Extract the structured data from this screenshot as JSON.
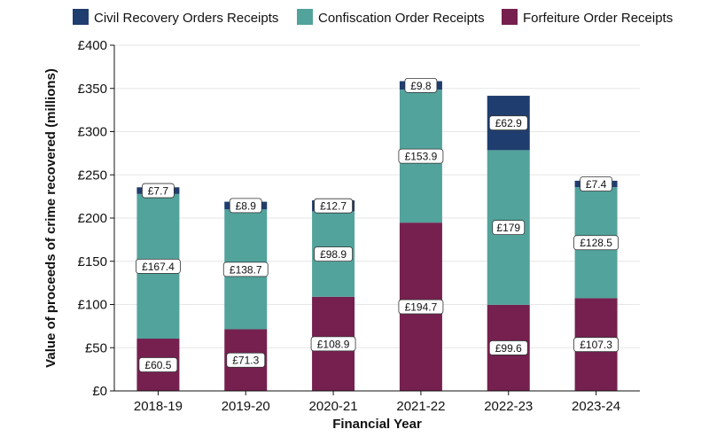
{
  "chart_data": {
    "type": "bar",
    "stacked": true,
    "categories": [
      "2018-19",
      "2019-20",
      "2020-21",
      "2021-22",
      "2022-23",
      "2023-24"
    ],
    "series": [
      {
        "name": "Forfeiture Order Receipts",
        "color": "#76204f",
        "values": [
          60.5,
          71.3,
          108.9,
          194.7,
          99.6,
          107.3
        ],
        "labels": [
          "£60.5",
          "£71.3",
          "£108.9",
          "£194.7",
          "£99.6",
          "£107.3"
        ]
      },
      {
        "name": "Confiscation Order Receipts",
        "color": "#52a39b",
        "values": [
          167.4,
          138.7,
          98.9,
          153.9,
          179,
          128.5
        ],
        "labels": [
          "£167.4",
          "£138.7",
          "£98.9",
          "£153.9",
          "£179",
          "£128.5"
        ]
      },
      {
        "name": "Civil Recovery Orders Receipts",
        "color": "#1f3d6e",
        "values": [
          7.7,
          8.9,
          12.7,
          9.8,
          62.9,
          7.4
        ],
        "labels": [
          "£7.7",
          "£8.9",
          "£12.7",
          "£9.8",
          "£62.9",
          "£7.4"
        ]
      }
    ],
    "legend_order": [
      "Civil Recovery Orders Receipts",
      "Confiscation Order Receipts",
      "Forfeiture Order Receipts"
    ],
    "legend_position": "top",
    "xlabel": "Financial Year",
    "ylabel": "Value of proceeds of crime recovered (millions)",
    "ylim": [
      0,
      400
    ],
    "yticks": [
      0,
      50,
      100,
      150,
      200,
      250,
      300,
      350,
      400
    ],
    "ytick_labels": [
      "£0",
      "£50",
      "£100",
      "£150",
      "£200",
      "£250",
      "£300",
      "£350",
      "£400"
    ],
    "grid": true
  }
}
